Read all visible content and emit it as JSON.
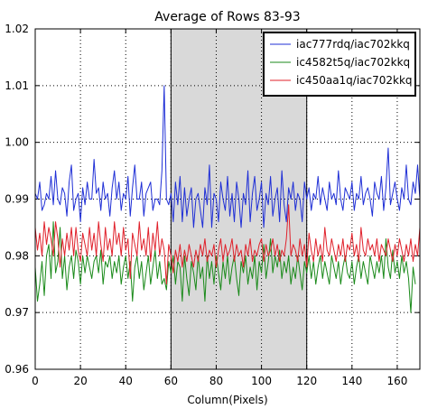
{
  "chart_data": {
    "type": "line",
    "title": "Average of Rows 83-93",
    "xlabel": "Column(Pixels)",
    "ylabel": "",
    "xlim": [
      0,
      170
    ],
    "ylim": [
      0.96,
      1.02
    ],
    "xticks": [
      0,
      20,
      40,
      60,
      80,
      100,
      120,
      140,
      160
    ],
    "yticks": [
      0.96,
      0.97,
      0.98,
      0.99,
      1.0,
      1.01,
      1.02
    ],
    "ytick_labels": [
      "0.96",
      "0.97",
      "0.98",
      "0.99",
      "1.00",
      "1.01",
      "1.02"
    ],
    "grid": true,
    "legend_position": "top-right",
    "shaded_region": {
      "x_start": 60,
      "x_end": 120,
      "color": "#d9d9d9"
    },
    "series": [
      {
        "name": "iac777rdq/iac702kkq",
        "color": "#1f2fd6",
        "x_start": 0,
        "x_step": 1,
        "values": [
          0.991,
          0.99,
          0.993,
          0.988,
          0.989,
          0.991,
          0.99,
          0.994,
          0.989,
          0.995,
          0.99,
          0.989,
          0.992,
          0.991,
          0.987,
          0.993,
          0.996,
          0.988,
          0.99,
          0.991,
          0.986,
          0.992,
          0.989,
          0.993,
          0.99,
          0.99,
          0.997,
          0.991,
          0.992,
          0.988,
          0.993,
          0.99,
          0.991,
          0.987,
          0.992,
          0.995,
          0.99,
          0.993,
          0.988,
          0.991,
          0.99,
          0.994,
          0.987,
          0.992,
          0.996,
          0.99,
          0.99,
          0.993,
          0.987,
          0.991,
          0.992,
          0.993,
          0.988,
          0.99,
          0.99,
          0.989,
          0.995,
          1.01,
          0.99,
          0.989,
          0.991,
          0.986,
          0.993,
          0.989,
          0.994,
          0.986,
          0.992,
          0.987,
          0.99,
          0.992,
          0.985,
          0.99,
          0.991,
          0.988,
          0.985,
          0.992,
          0.989,
          0.996,
          0.985,
          0.991,
          0.99,
          0.986,
          0.993,
          0.99,
          0.988,
          0.994,
          0.987,
          0.991,
          0.986,
          0.993,
          0.99,
          0.985,
          0.991,
          0.989,
          0.995,
          0.986,
          0.991,
          0.994,
          0.988,
          0.99,
          0.993,
          0.985,
          0.991,
          0.989,
          0.994,
          0.987,
          0.99,
          0.992,
          0.986,
          0.995,
          0.989,
          0.986,
          0.992,
          0.99,
          0.993,
          0.988,
          0.991,
          0.99,
          0.986,
          0.993,
          0.99,
          0.992,
          0.988,
          0.991,
          0.99,
          0.994,
          0.989,
          0.992,
          0.99,
          0.988,
          0.993,
          0.99,
          0.991,
          0.989,
          0.995,
          0.99,
          0.988,
          0.992,
          0.991,
          0.99,
          0.993,
          0.988,
          0.991,
          0.99,
          0.994,
          0.989,
          0.991,
          0.992,
          0.99,
          0.987,
          0.993,
          0.991,
          0.99,
          0.994,
          0.988,
          0.992,
          0.999,
          0.989,
          0.991,
          0.993,
          0.99,
          0.988,
          0.992,
          0.99,
          0.996,
          0.99,
          0.989,
          0.993,
          0.991,
          0.996,
          0.99
        ]
      },
      {
        "name": "ic4582t5q/iac702kkq",
        "color": "#1a8a1a",
        "x_start": 0,
        "x_step": 1,
        "values": [
          0.978,
          0.972,
          0.975,
          0.979,
          0.973,
          0.98,
          0.982,
          0.976,
          0.986,
          0.977,
          0.979,
          0.985,
          0.976,
          0.98,
          0.974,
          0.978,
          0.98,
          0.976,
          0.981,
          0.979,
          0.975,
          0.98,
          0.977,
          0.98,
          0.978,
          0.976,
          0.979,
          0.98,
          0.977,
          0.981,
          0.975,
          0.979,
          0.978,
          0.98,
          0.976,
          0.979,
          0.977,
          0.98,
          0.975,
          0.978,
          0.98,
          0.976,
          0.979,
          0.972,
          0.978,
          0.98,
          0.976,
          0.979,
          0.974,
          0.977,
          0.98,
          0.975,
          0.978,
          0.981,
          0.976,
          0.979,
          0.975,
          0.976,
          0.974,
          0.979,
          0.977,
          0.98,
          0.975,
          0.979,
          0.978,
          0.972,
          0.98,
          0.976,
          0.973,
          0.979,
          0.977,
          0.974,
          0.98,
          0.976,
          0.978,
          0.972,
          0.98,
          0.976,
          0.979,
          0.975,
          0.98,
          0.977,
          0.974,
          0.979,
          0.976,
          0.98,
          0.975,
          0.978,
          0.98,
          0.976,
          0.973,
          0.979,
          0.977,
          0.98,
          0.975,
          0.978,
          0.976,
          0.98,
          0.974,
          0.979,
          0.977,
          0.982,
          0.976,
          0.979,
          0.983,
          0.977,
          0.98,
          0.978,
          0.981,
          0.976,
          0.979,
          0.977,
          0.98,
          0.975,
          0.978,
          0.976,
          0.98,
          0.977,
          0.974,
          0.979,
          0.977,
          0.98,
          0.976,
          0.979,
          0.975,
          0.978,
          0.98,
          0.976,
          0.979,
          0.977,
          0.975,
          0.98,
          0.978,
          0.976,
          0.979,
          0.975,
          0.978,
          0.98,
          0.977,
          0.976,
          0.979,
          0.975,
          0.978,
          0.98,
          0.976,
          0.979,
          0.977,
          0.975,
          0.98,
          0.978,
          0.976,
          0.979,
          0.977,
          0.98,
          0.976,
          0.983,
          0.978,
          0.976,
          0.981,
          0.977,
          0.979,
          0.976,
          0.98,
          0.977,
          0.979,
          0.976,
          0.97,
          0.978,
          0.975
        ]
      },
      {
        "name": "ic450aa1q/iac702kkq",
        "color": "#e0202a",
        "x_start": 0,
        "x_step": 1,
        "values": [
          0.985,
          0.981,
          0.984,
          0.98,
          0.986,
          0.982,
          0.985,
          0.983,
          0.98,
          0.986,
          0.983,
          0.978,
          0.983,
          0.98,
          0.984,
          0.981,
          0.985,
          0.98,
          0.985,
          0.981,
          0.979,
          0.984,
          0.982,
          0.98,
          0.985,
          0.981,
          0.984,
          0.98,
          0.986,
          0.982,
          0.979,
          0.985,
          0.981,
          0.983,
          0.98,
          0.986,
          0.982,
          0.984,
          0.98,
          0.985,
          0.981,
          0.983,
          0.976,
          0.984,
          0.982,
          0.98,
          0.986,
          0.981,
          0.983,
          0.98,
          0.985,
          0.979,
          0.984,
          0.981,
          0.986,
          0.98,
          0.983,
          0.981,
          0.975,
          0.982,
          0.98,
          0.977,
          0.981,
          0.979,
          0.982,
          0.978,
          0.981,
          0.979,
          0.982,
          0.98,
          0.978,
          0.981,
          0.979,
          0.982,
          0.98,
          0.983,
          0.979,
          0.981,
          0.98,
          0.982,
          0.978,
          0.981,
          0.983,
          0.979,
          0.982,
          0.98,
          0.981,
          0.983,
          0.979,
          0.982,
          0.98,
          0.981,
          0.978,
          0.982,
          0.98,
          0.983,
          0.979,
          0.981,
          0.98,
          0.982,
          0.983,
          0.979,
          0.982,
          0.98,
          0.981,
          0.983,
          0.98,
          0.982,
          0.979,
          0.981,
          0.98,
          0.983,
          0.989,
          0.98,
          0.982,
          0.981,
          0.979,
          0.983,
          0.98,
          0.982,
          0.978,
          0.984,
          0.981,
          0.979,
          0.983,
          0.98,
          0.982,
          0.979,
          0.985,
          0.981,
          0.98,
          0.983,
          0.981,
          0.979,
          0.982,
          0.98,
          0.983,
          0.979,
          0.982,
          0.981,
          0.984,
          0.98,
          0.982,
          0.979,
          0.985,
          0.981,
          0.98,
          0.983,
          0.981,
          0.982,
          0.98,
          0.983,
          0.979,
          0.982,
          0.981,
          0.98,
          0.983,
          0.981,
          0.979,
          0.982,
          0.98,
          0.983,
          0.981,
          0.979,
          0.982,
          0.98,
          0.983,
          0.979,
          0.982,
          0.98,
          0.985
        ]
      }
    ]
  }
}
